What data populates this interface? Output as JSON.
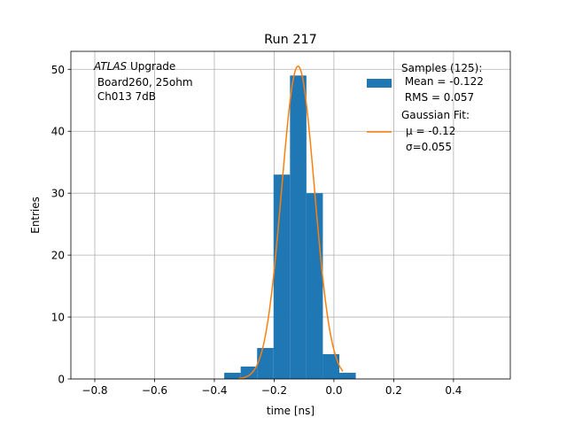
{
  "chart_data": {
    "type": "bar",
    "title": "Run 217",
    "xlabel": "time [ns]",
    "ylabel": "Entries",
    "xlim": [
      -0.88,
      0.59
    ],
    "ylim": [
      0,
      52.9
    ],
    "x_ticks": [
      -0.8,
      -0.6,
      -0.4,
      -0.2,
      0.0,
      0.2,
      0.4
    ],
    "x_tick_labels": [
      "−0.8",
      "−0.6",
      "−0.4",
      "−0.2",
      "0.0",
      "0.2",
      "0.4"
    ],
    "y_ticks": [
      0,
      10,
      20,
      30,
      40,
      50
    ],
    "y_tick_labels": [
      "0",
      "10",
      "20",
      "30",
      "40",
      "50"
    ],
    "grid": true,
    "histogram": {
      "bin_edges": [
        -0.367,
        -0.312,
        -0.257,
        -0.202,
        -0.147,
        -0.092,
        -0.037,
        0.018,
        0.073
      ],
      "counts": [
        1,
        2,
        5,
        33,
        49,
        30,
        4,
        1
      ],
      "color": "#1f77b4"
    },
    "gaussian_fit": {
      "amplitude": 50.5,
      "mu": -0.12,
      "sigma": 0.055,
      "x_range": [
        -0.32,
        0.03
      ],
      "color": "#ff7f0e"
    },
    "annotation": {
      "line1_italic": "ATLAS",
      "line1_rest": " Upgrade",
      "line2": " Board260, 25ohm",
      "line3": " Ch013 7dB"
    },
    "legend": {
      "position": "upper right",
      "entries": [
        {
          "kind": "patch",
          "color": "#1f77b4",
          "lines": [
            "Samples (125):",
            " Mean = -0.122",
            " RMS = 0.057"
          ]
        },
        {
          "kind": "line",
          "color": "#ff7f0e",
          "lines": [
            "Gaussian Fit:",
            "μ = -0.12",
            "σ=0.055"
          ]
        }
      ]
    }
  }
}
